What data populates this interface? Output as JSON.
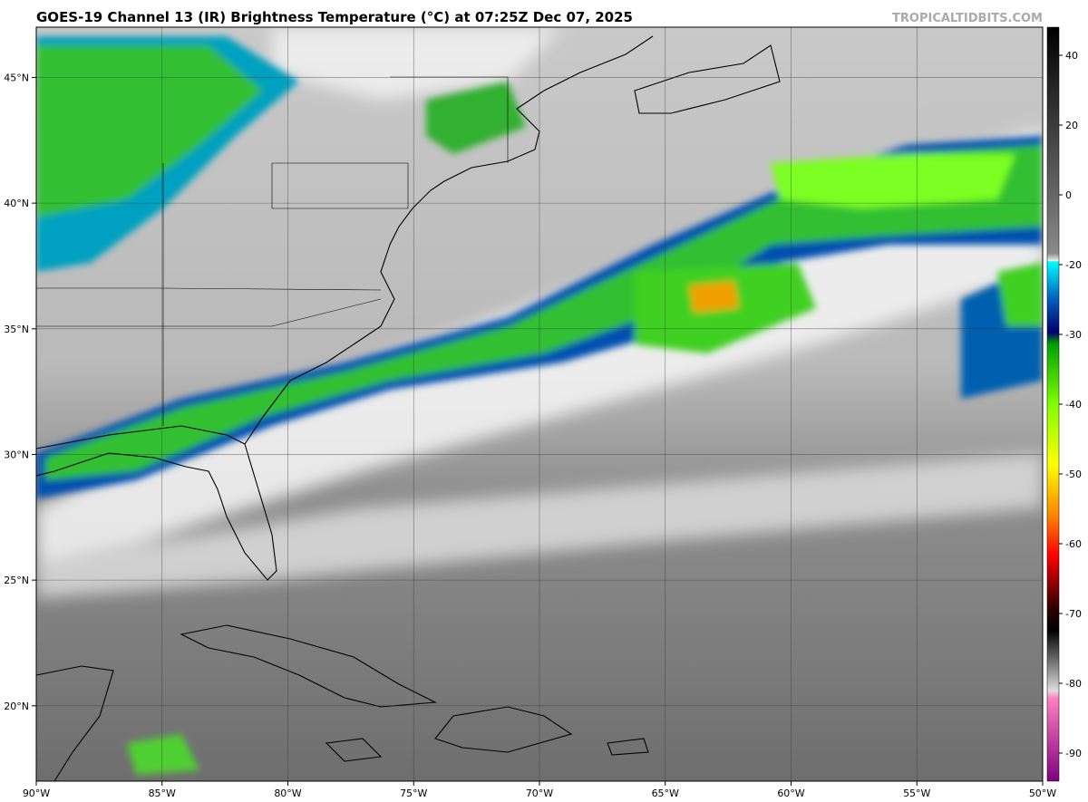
{
  "title": "GOES-19 Channel 13 (IR) Brightness Temperature (°C) at 07:25Z Dec 07, 2025",
  "watermark": "TROPICALTIDBITS.COM",
  "lonlim": [
    -90,
    -50
  ],
  "latlim": [
    17,
    47
  ],
  "lon_ticks": [
    {
      "value": -90,
      "label": "90°W"
    },
    {
      "value": -85,
      "label": "85°W"
    },
    {
      "value": -80,
      "label": "80°W"
    },
    {
      "value": -75,
      "label": "75°W"
    },
    {
      "value": -70,
      "label": "70°W"
    },
    {
      "value": -65,
      "label": "65°W"
    },
    {
      "value": -60,
      "label": "60°W"
    },
    {
      "value": -55,
      "label": "55°W"
    },
    {
      "value": -50,
      "label": "50°W"
    }
  ],
  "lat_ticks": [
    {
      "value": 20,
      "label": "20°N"
    },
    {
      "value": 25,
      "label": "25°N"
    },
    {
      "value": 30,
      "label": "30°N"
    },
    {
      "value": 35,
      "label": "35°N"
    },
    {
      "value": 40,
      "label": "40°N"
    },
    {
      "value": 45,
      "label": "45°N"
    }
  ],
  "colorbar": {
    "ticks": [
      40,
      20,
      0,
      -20,
      -30,
      -40,
      -50,
      -60,
      -70,
      -80,
      -90
    ]
  }
}
